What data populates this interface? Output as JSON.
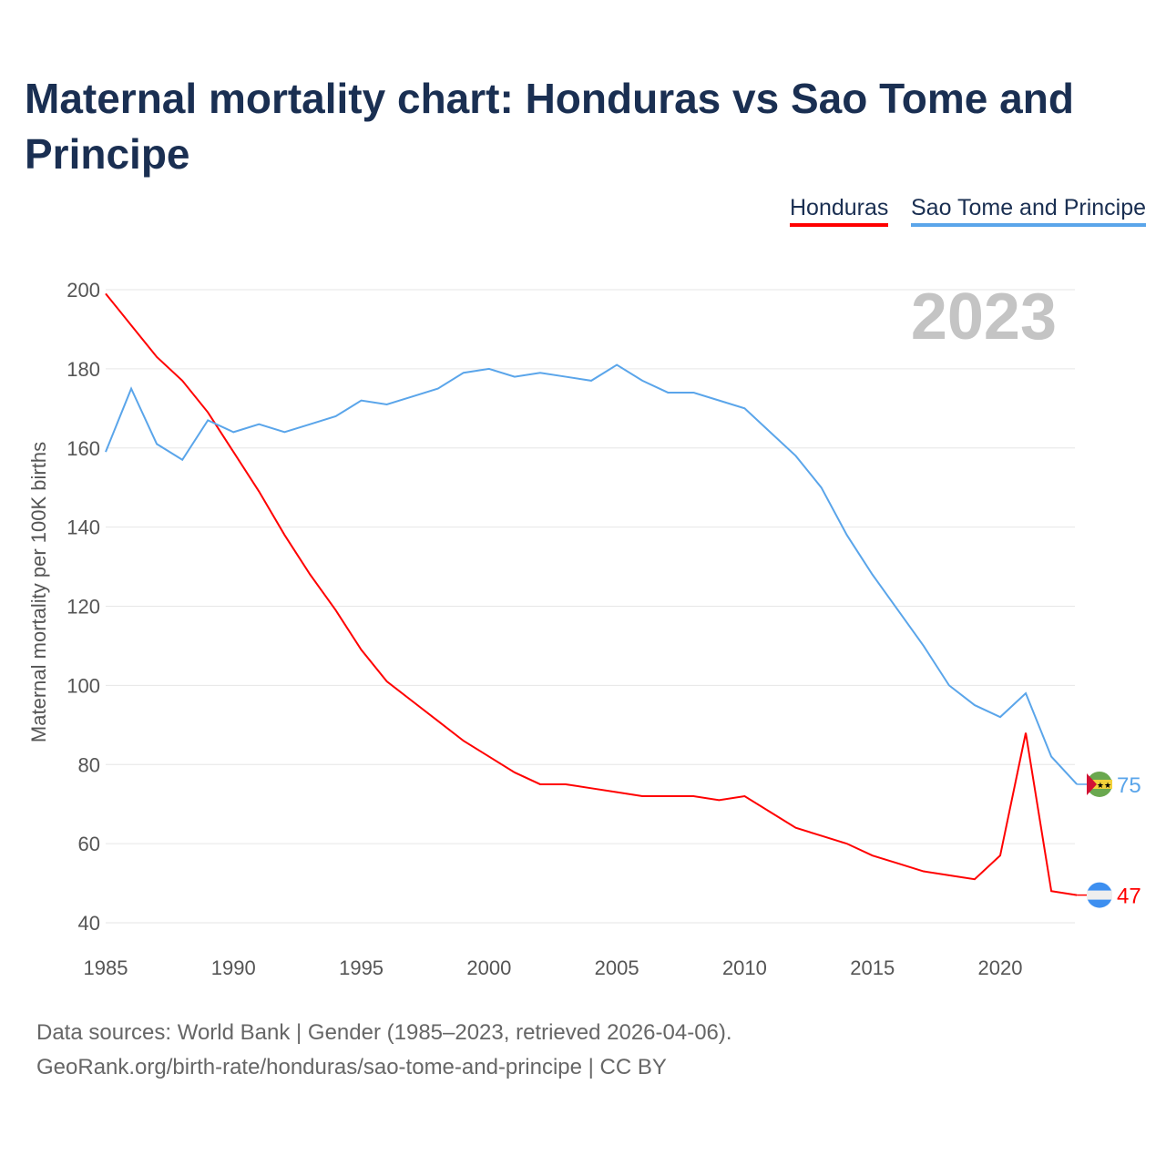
{
  "chart_data": {
    "type": "line",
    "title": "Maternal mortality chart: Honduras vs Sao Tome and Principe",
    "ylabel": "Maternal mortality per 100K births",
    "xlabel": "",
    "ylim": [
      40,
      200
    ],
    "xlim": [
      1985,
      2023
    ],
    "yticks": [
      40,
      60,
      80,
      100,
      120,
      140,
      160,
      180,
      200
    ],
    "xticks": [
      1985,
      1990,
      1995,
      2000,
      2005,
      2010,
      2015,
      2020
    ],
    "year_label": "2023",
    "grid": true,
    "legend_position": "top-right",
    "x": [
      1985,
      1986,
      1987,
      1988,
      1989,
      1990,
      1991,
      1992,
      1993,
      1994,
      1995,
      1996,
      1997,
      1998,
      1999,
      2000,
      2001,
      2002,
      2003,
      2004,
      2005,
      2006,
      2007,
      2008,
      2009,
      2010,
      2011,
      2012,
      2013,
      2014,
      2015,
      2016,
      2017,
      2018,
      2019,
      2020,
      2021,
      2022,
      2023
    ],
    "series": [
      {
        "name": "Honduras",
        "color": "#ff0000",
        "end_label": "47",
        "values": [
          199,
          191,
          183,
          177,
          169,
          159,
          149,
          138,
          128,
          119,
          109,
          101,
          96,
          91,
          86,
          82,
          78,
          75,
          75,
          74,
          73,
          72,
          72,
          72,
          71,
          72,
          68,
          64,
          62,
          60,
          57,
          55,
          53,
          52,
          51,
          57,
          88,
          48,
          47
        ]
      },
      {
        "name": "Sao Tome and Principe",
        "color": "#5aa5ea",
        "end_label": "75",
        "values": [
          159,
          175,
          161,
          157,
          167,
          164,
          166,
          164,
          166,
          168,
          172,
          171,
          173,
          175,
          179,
          180,
          178,
          179,
          178,
          177,
          181,
          177,
          174,
          174,
          172,
          170,
          164,
          158,
          150,
          138,
          128,
          119,
          110,
          100,
          95,
          92,
          98,
          82,
          75
        ]
      }
    ]
  },
  "footer": {
    "line1": "Data sources: World Bank | Gender (1985–2023, retrieved 2026-04-06).",
    "line2": "GeoRank.org/birth-rate/honduras/sao-tome-and-principe | CC BY"
  }
}
